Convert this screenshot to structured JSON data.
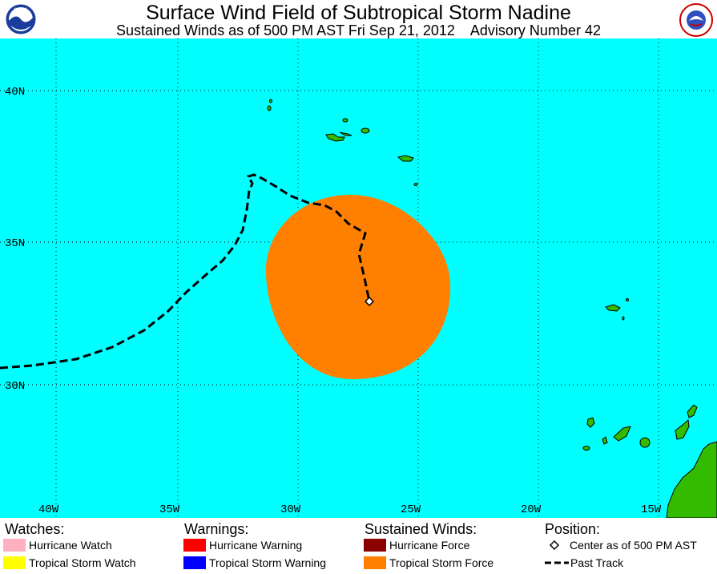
{
  "header": {
    "title": "Surface Wind Field of Subtropical Storm Nadine",
    "subtitle": "Sustained Winds as of 500 PM AST Fri Sep 21, 2012    Advisory Number 42",
    "left_logo": "NOAA",
    "right_logo": "NATIONAL WEATHER SERVICE"
  },
  "map": {
    "colors": {
      "ocean": "#00ffff",
      "land": "#33bb00",
      "wind_field": "#ff8000",
      "track": "#000000",
      "grid": "#000000"
    },
    "lat_labels": [
      "40N",
      "35N",
      "30N"
    ],
    "lon_labels": [
      "40W",
      "35W",
      "30W",
      "25W",
      "20W",
      "15W"
    ]
  },
  "legend": {
    "watches": {
      "heading": "Watches:",
      "items": [
        {
          "label": "Hurricane Watch",
          "color": "#ffb0c0"
        },
        {
          "label": "Tropical Storm Watch",
          "color": "#ffff00"
        }
      ]
    },
    "warnings": {
      "heading": "Warnings:",
      "items": [
        {
          "label": "Hurricane Warning",
          "color": "#ff0000"
        },
        {
          "label": "Tropical Storm Warning",
          "color": "#0000ff"
        }
      ]
    },
    "winds": {
      "heading": "Sustained Winds:",
      "items": [
        {
          "label": "Hurricane Force",
          "color": "#8b0000"
        },
        {
          "label": "Tropical Storm Force",
          "color": "#ff8000"
        }
      ]
    },
    "position": {
      "heading": "Position:",
      "items": [
        {
          "label": "Center as of 500 PM AST",
          "icon": "diamond-icon"
        },
        {
          "label": "Past Track",
          "icon": "dashed-line-icon"
        }
      ]
    }
  }
}
